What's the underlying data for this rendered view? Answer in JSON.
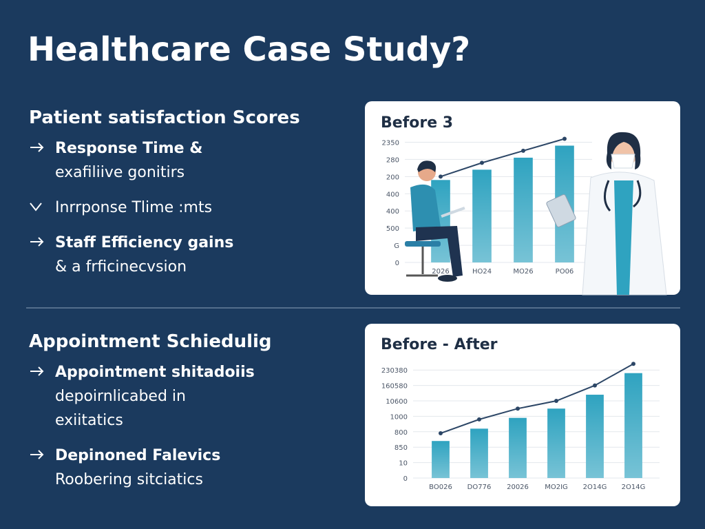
{
  "header": {
    "title": "Healthcare Case Study?"
  },
  "sections": [
    {
      "heading": "Patient satisfaction Scores",
      "items": [
        {
          "marker": "arrow",
          "title": "Response Time &",
          "lines": [
            "exafiliive gonitirs"
          ]
        },
        {
          "marker": "check",
          "lines": [
            "Inrrponse Tlime :mts"
          ]
        },
        {
          "marker": "arrow",
          "title": "Staff Efficiency gains",
          "lines": [
            "& a frficinecvsion"
          ]
        }
      ]
    },
    {
      "heading": "Appointment Schiedulig",
      "items": [
        {
          "marker": "arrow",
          "title": "Appointment shitadoiis",
          "lines": [
            "depoirnlicabed in",
            "exiitatics"
          ]
        },
        {
          "marker": "arrow",
          "title": "Depinoned Falevics",
          "lines": [
            "Roobering sitciatics"
          ]
        }
      ]
    }
  ],
  "chart_data": [
    {
      "type": "bar",
      "title": "Before 3",
      "categories": [
        "2026",
        "HO24",
        "MO26",
        "PO06"
      ],
      "ylim": [
        0,
        7.5
      ],
      "yticks": [
        {
          "value": 0,
          "label": "0"
        },
        {
          "value": 1,
          "label": "G"
        },
        {
          "value": 2,
          "label": "500"
        },
        {
          "value": 3,
          "label": "400"
        },
        {
          "value": 4,
          "label": "400"
        },
        {
          "value": 5,
          "label": "200"
        },
        {
          "value": 6,
          "label": "280"
        },
        {
          "value": 7,
          "label": "2350"
        }
      ],
      "grid": true,
      "series": [
        {
          "type": "bar",
          "color": "#2fa3c0",
          "values": [
            4.8,
            5.4,
            6.1,
            6.8
          ]
        },
        {
          "type": "line",
          "color": "#2c4666",
          "values": [
            5.0,
            5.8,
            6.5,
            7.2
          ]
        }
      ]
    },
    {
      "type": "bar",
      "title": "Before - After",
      "categories": [
        "BO026",
        "DO776",
        "20026",
        "MO2IG",
        "2O14G",
        "2O14G"
      ],
      "ylim": [
        0,
        7.5
      ],
      "yticks": [
        {
          "value": 0,
          "label": "0"
        },
        {
          "value": 1,
          "label": "10"
        },
        {
          "value": 2,
          "label": "850"
        },
        {
          "value": 3,
          "label": "800"
        },
        {
          "value": 4,
          "label": "1000"
        },
        {
          "value": 5,
          "label": "10600"
        },
        {
          "value": 6,
          "label": "160580"
        },
        {
          "value": 7,
          "label": "230380"
        }
      ],
      "grid": true,
      "series": [
        {
          "type": "bar",
          "color": "#2fa3c0",
          "values": [
            2.4,
            3.2,
            3.9,
            4.5,
            5.4,
            6.8
          ]
        },
        {
          "type": "line",
          "color": "#2c4666",
          "values": [
            2.9,
            3.8,
            4.5,
            5.0,
            6.0,
            7.4
          ]
        }
      ]
    }
  ]
}
